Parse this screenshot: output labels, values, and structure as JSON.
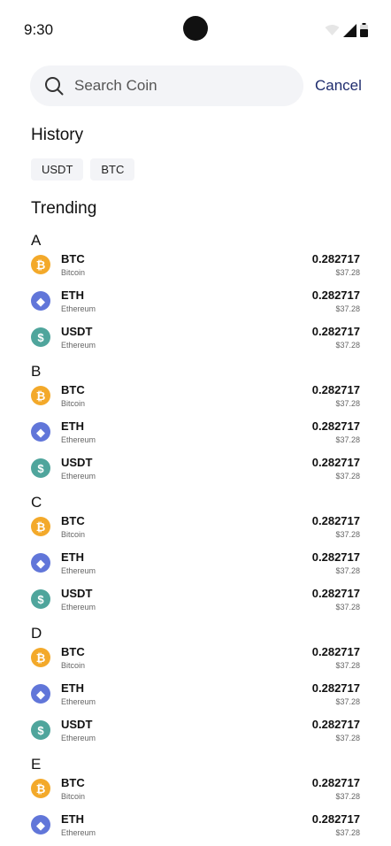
{
  "status_bar": {
    "time": "9:30",
    "icons": [
      "wifi-icon",
      "signal-icon",
      "battery-icon"
    ]
  },
  "search": {
    "placeholder": "Search Coin",
    "value": "",
    "cancel_label": "Cancel"
  },
  "history": {
    "title": "History",
    "chips": [
      "USDT",
      "BTC"
    ]
  },
  "trending": {
    "title": "Trending",
    "groups": [
      {
        "letter": "A",
        "coins": [
          {
            "symbol": "BTC",
            "name": "Bitcoin",
            "amount": "0.282717",
            "value": "$37.28",
            "icon": "bitcoin-icon"
          },
          {
            "symbol": "ETH",
            "name": "Ethereum",
            "amount": "0.282717",
            "value": "$37.28",
            "icon": "ethereum-icon"
          },
          {
            "symbol": "USDT",
            "name": "Ethereum",
            "amount": "0.282717",
            "value": "$37.28",
            "icon": "tether-icon"
          }
        ]
      },
      {
        "letter": "B",
        "coins": [
          {
            "symbol": "BTC",
            "name": "Bitcoin",
            "amount": "0.282717",
            "value": "$37.28",
            "icon": "bitcoin-icon"
          },
          {
            "symbol": "ETH",
            "name": "Ethereum",
            "amount": "0.282717",
            "value": "$37.28",
            "icon": "ethereum-icon"
          },
          {
            "symbol": "USDT",
            "name": "Ethereum",
            "amount": "0.282717",
            "value": "$37.28",
            "icon": "tether-icon"
          }
        ]
      },
      {
        "letter": "C",
        "coins": [
          {
            "symbol": "BTC",
            "name": "Bitcoin",
            "amount": "0.282717",
            "value": "$37.28",
            "icon": "bitcoin-icon"
          },
          {
            "symbol": "ETH",
            "name": "Ethereum",
            "amount": "0.282717",
            "value": "$37.28",
            "icon": "ethereum-icon"
          },
          {
            "symbol": "USDT",
            "name": "Ethereum",
            "amount": "0.282717",
            "value": "$37.28",
            "icon": "tether-icon"
          }
        ]
      },
      {
        "letter": "D",
        "coins": [
          {
            "symbol": "BTC",
            "name": "Bitcoin",
            "amount": "0.282717",
            "value": "$37.28",
            "icon": "bitcoin-icon"
          },
          {
            "symbol": "ETH",
            "name": "Ethereum",
            "amount": "0.282717",
            "value": "$37.28",
            "icon": "ethereum-icon"
          },
          {
            "symbol": "USDT",
            "name": "Ethereum",
            "amount": "0.282717",
            "value": "$37.28",
            "icon": "tether-icon"
          }
        ]
      },
      {
        "letter": "E",
        "coins": [
          {
            "symbol": "BTC",
            "name": "Bitcoin",
            "amount": "0.282717",
            "value": "$37.28",
            "icon": "bitcoin-icon"
          },
          {
            "symbol": "ETH",
            "name": "Ethereum",
            "amount": "0.282717",
            "value": "$37.28",
            "icon": "ethereum-icon"
          }
        ]
      }
    ]
  },
  "colors": {
    "bitcoin": "#f3a92a",
    "ethereum": "#6176d9",
    "tether": "#4fa59c",
    "accent": "#1f2d6e",
    "surface": "#f3f4f7"
  }
}
